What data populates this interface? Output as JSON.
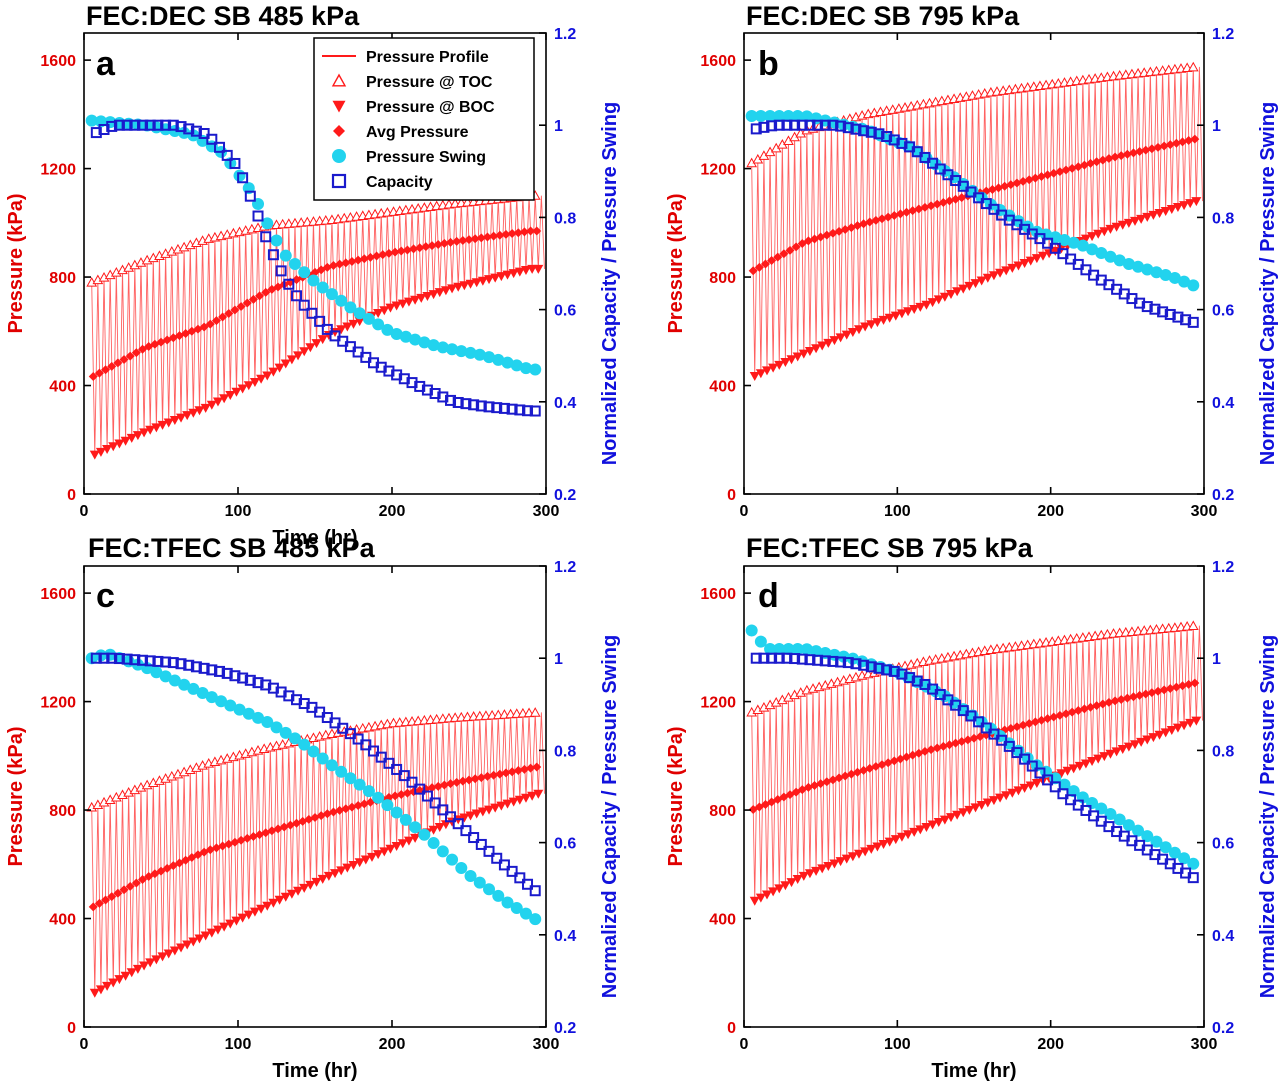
{
  "figure": {
    "x_axis_label": "Time (hr)",
    "legend": [
      {
        "key": "profile",
        "label": "Pressure Profile"
      },
      {
        "key": "toc",
        "label": "Pressure @ TOC"
      },
      {
        "key": "boc",
        "label": "Pressure @ BOC"
      },
      {
        "key": "avg",
        "label": "Avg Pressure"
      },
      {
        "key": "swing",
        "label": "Pressure Swing"
      },
      {
        "key": "cap",
        "label": "Capacity"
      }
    ],
    "colors": {
      "pressure": "#ff1a1a",
      "profile": "#ff5050",
      "swing": "#22d3ee",
      "capacity": "#1a1acc",
      "left_axis": "#e00000",
      "right_axis": "#1111dd"
    }
  },
  "chart_data": [
    {
      "panel": "a",
      "title": "FEC:DEC SB 485 kPa",
      "type": "line",
      "xlabel": "Time (hr)",
      "ylabel": "Pressure (kPa)",
      "y2label": "Normalized Capacity / Pressure Swing",
      "xlim": [
        0,
        300
      ],
      "ylim": [
        0,
        1700
      ],
      "y2lim": [
        0.2,
        1.2
      ],
      "xticks": [
        0,
        100,
        200,
        300
      ],
      "yticks": [
        0,
        400,
        800,
        1200,
        1600
      ],
      "y2ticks": [
        0.2,
        0.4,
        0.6,
        0.8,
        1.0,
        1.2
      ],
      "y2ticklabels": [
        "0.2",
        "0.4",
        "0.6",
        "0.8",
        "1",
        "1.2"
      ],
      "toc": {
        "x": [
          5,
          40,
          80,
          120,
          160,
          200,
          240,
          290
        ],
        "y": [
          780,
          860,
          940,
          990,
          1010,
          1040,
          1070,
          1100
        ]
      },
      "boc": {
        "x": [
          5,
          40,
          80,
          120,
          160,
          200,
          240,
          290
        ],
        "y": [
          140,
          230,
          320,
          440,
          590,
          690,
          760,
          830
        ]
      },
      "avg": {
        "x": [
          5,
          40,
          80,
          120,
          160,
          200,
          240,
          290
        ],
        "y": [
          430,
          540,
          620,
          750,
          840,
          890,
          930,
          970
        ]
      },
      "swing": {
        "x": [
          5,
          40,
          70,
          90,
          110,
          120,
          130,
          150,
          175,
          200,
          230,
          260,
          290
        ],
        "y": [
          1.01,
          1.0,
          0.98,
          0.94,
          0.85,
          0.78,
          0.72,
          0.66,
          0.6,
          0.55,
          0.52,
          0.5,
          0.47
        ]
      },
      "capacity": {
        "x": [
          5,
          20,
          60,
          80,
          100,
          110,
          120,
          130,
          140,
          160,
          190,
          220,
          240,
          260,
          290
        ],
        "y": [
          0.98,
          1.0,
          1.0,
          0.98,
          0.91,
          0.83,
          0.74,
          0.67,
          0.62,
          0.55,
          0.48,
          0.43,
          0.4,
          0.39,
          0.38
        ]
      }
    },
    {
      "panel": "b",
      "title": "FEC:DEC SB 795 kPa",
      "type": "line",
      "xlabel": "",
      "ylabel": "Pressure (kPa)",
      "y2label": "Normalized Capacity / Pressure Swing",
      "xlim": [
        0,
        300
      ],
      "ylim": [
        0,
        1700
      ],
      "y2lim": [
        0.2,
        1.2
      ],
      "xticks": [
        0,
        100,
        200,
        300
      ],
      "yticks": [
        0,
        400,
        800,
        1200,
        1600
      ],
      "y2ticks": [
        0.2,
        0.4,
        0.6,
        0.8,
        1.0,
        1.2
      ],
      "y2ticklabels": [
        "0.2",
        "0.4",
        "0.6",
        "0.8",
        "1",
        "1.2"
      ],
      "toc": {
        "x": [
          5,
          40,
          80,
          120,
          160,
          200,
          240,
          295
        ],
        "y": [
          1220,
          1340,
          1400,
          1440,
          1480,
          1510,
          1540,
          1575
        ]
      },
      "boc": {
        "x": [
          5,
          40,
          80,
          120,
          160,
          200,
          240,
          295
        ],
        "y": [
          430,
          520,
          620,
          700,
          800,
          890,
          980,
          1080
        ]
      },
      "avg": {
        "x": [
          5,
          40,
          80,
          120,
          160,
          200,
          240,
          295
        ],
        "y": [
          820,
          930,
          1000,
          1060,
          1120,
          1180,
          1240,
          1310
        ]
      },
      "swing": {
        "x": [
          5,
          40,
          80,
          110,
          140,
          160,
          190,
          220,
          250,
          280,
          295
        ],
        "y": [
          1.02,
          1.02,
          0.99,
          0.95,
          0.88,
          0.83,
          0.77,
          0.74,
          0.7,
          0.67,
          0.65
        ]
      },
      "capacity": {
        "x": [
          5,
          20,
          60,
          90,
          110,
          130,
          150,
          170,
          200,
          230,
          260,
          295
        ],
        "y": [
          0.99,
          1.0,
          1.0,
          0.98,
          0.95,
          0.9,
          0.85,
          0.8,
          0.74,
          0.67,
          0.61,
          0.57
        ]
      }
    },
    {
      "panel": "c",
      "title": "FEC:TFEC SB 485 kPa",
      "type": "line",
      "xlabel": "Time (hr)",
      "ylabel": "Pressure (kPa)",
      "y2label": "Normalized Capacity / Pressure Swing",
      "xlim": [
        0,
        300
      ],
      "ylim": [
        0,
        1700
      ],
      "y2lim": [
        0.2,
        1.2
      ],
      "xticks": [
        0,
        100,
        200,
        300
      ],
      "yticks": [
        0,
        400,
        800,
        1200,
        1600
      ],
      "y2ticks": [
        0.2,
        0.4,
        0.6,
        0.8,
        1.0,
        1.2
      ],
      "y2ticklabels": [
        "0.2",
        "0.4",
        "0.6",
        "0.8",
        "1",
        "1.2"
      ],
      "toc": {
        "x": [
          5,
          40,
          80,
          120,
          160,
          200,
          240,
          295
        ],
        "y": [
          810,
          890,
          970,
          1030,
          1080,
          1120,
          1140,
          1160
        ]
      },
      "boc": {
        "x": [
          5,
          40,
          80,
          120,
          160,
          200,
          240,
          295
        ],
        "y": [
          120,
          230,
          340,
          450,
          560,
          660,
          760,
          860
        ]
      },
      "avg": {
        "x": [
          5,
          40,
          80,
          120,
          160,
          200,
          240,
          295
        ],
        "y": [
          440,
          550,
          650,
          720,
          790,
          850,
          900,
          960
        ]
      },
      "swing": {
        "x": [
          5,
          15,
          40,
          60,
          80,
          100,
          120,
          140,
          160,
          190,
          220,
          250,
          275,
          295
        ],
        "y": [
          1.0,
          1.01,
          0.98,
          0.95,
          0.92,
          0.89,
          0.86,
          0.82,
          0.77,
          0.7,
          0.62,
          0.53,
          0.47,
          0.43
        ]
      },
      "capacity": {
        "x": [
          5,
          20,
          60,
          90,
          120,
          150,
          180,
          210,
          240,
          270,
          295
        ],
        "y": [
          1.0,
          1.0,
          0.99,
          0.97,
          0.94,
          0.89,
          0.82,
          0.74,
          0.65,
          0.56,
          0.49
        ]
      }
    },
    {
      "panel": "d",
      "title": "FEC:TFEC SB 795 kPa",
      "type": "line",
      "xlabel": "Time (hr)",
      "ylabel": "Pressure (kPa)",
      "y2label": "Normalized Capacity / Pressure Swing",
      "xlim": [
        0,
        300
      ],
      "ylim": [
        0,
        1700
      ],
      "y2lim": [
        0.2,
        1.2
      ],
      "xticks": [
        0,
        100,
        200,
        300
      ],
      "yticks": [
        0,
        400,
        800,
        1200,
        1600
      ],
      "y2ticks": [
        0.2,
        0.4,
        0.6,
        0.8,
        1.0,
        1.2
      ],
      "y2ticklabels": [
        "0.2",
        "0.4",
        "0.6",
        "0.8",
        "1",
        "1.2"
      ],
      "toc": {
        "x": [
          5,
          40,
          80,
          120,
          160,
          200,
          240,
          295
        ],
        "y": [
          1160,
          1240,
          1300,
          1350,
          1390,
          1420,
          1450,
          1480
        ]
      },
      "boc": {
        "x": [
          5,
          40,
          80,
          120,
          160,
          200,
          240,
          295
        ],
        "y": [
          460,
          560,
          650,
          740,
          830,
          920,
          1010,
          1130
        ]
      },
      "avg": {
        "x": [
          5,
          40,
          80,
          120,
          160,
          200,
          240,
          295
        ],
        "y": [
          800,
          880,
          950,
          1020,
          1080,
          1140,
          1200,
          1270
        ]
      },
      "swing": {
        "x": [
          5,
          15,
          40,
          70,
          100,
          130,
          160,
          190,
          220,
          250,
          275,
          295
        ],
        "y": [
          1.06,
          1.02,
          1.02,
          1.0,
          0.97,
          0.92,
          0.85,
          0.77,
          0.7,
          0.64,
          0.59,
          0.55
        ]
      },
      "capacity": {
        "x": [
          5,
          30,
          70,
          100,
          120,
          150,
          180,
          210,
          240,
          270,
          295
        ],
        "y": [
          1.0,
          1.0,
          0.99,
          0.97,
          0.94,
          0.87,
          0.79,
          0.7,
          0.63,
          0.57,
          0.52
        ]
      }
    }
  ]
}
